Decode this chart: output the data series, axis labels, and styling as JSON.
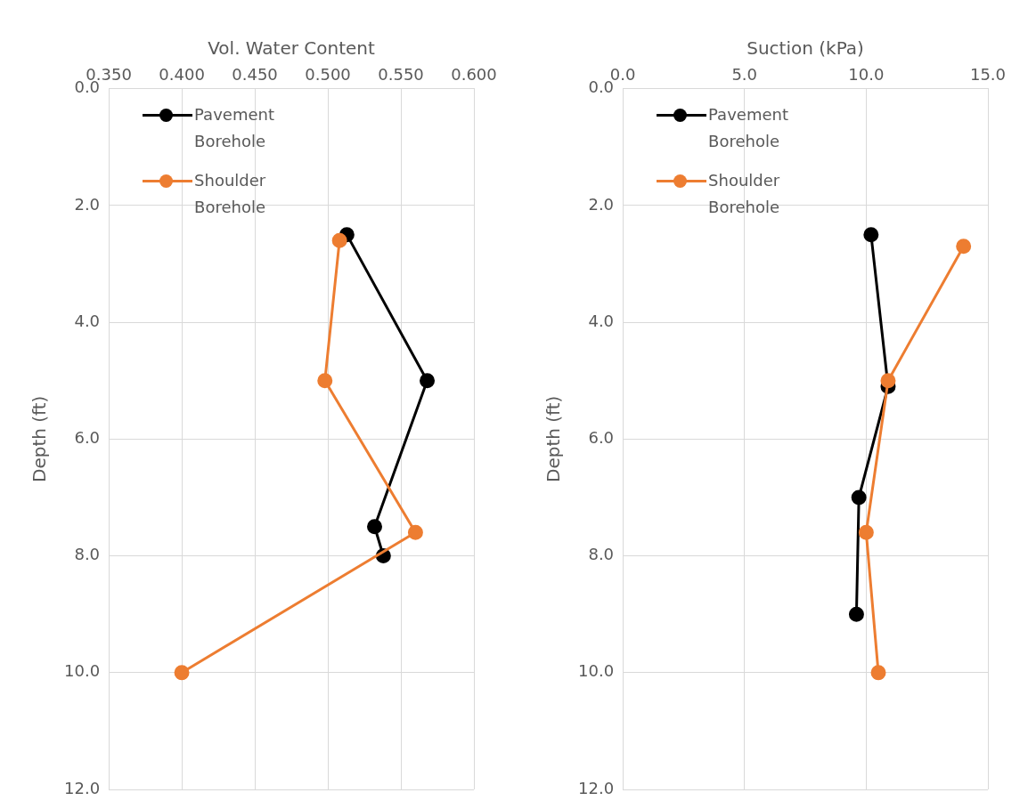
{
  "chart_data": [
    {
      "type": "line",
      "xlabel": "Vol. Water Content",
      "ylabel": "Depth (ft)",
      "xlim": [
        0.35,
        0.6
      ],
      "xticks": [
        {
          "value": 0.35,
          "label": "0.350"
        },
        {
          "value": 0.4,
          "label": "0.400"
        },
        {
          "value": 0.45,
          "label": "0.450"
        },
        {
          "value": 0.5,
          "label": "0.500"
        },
        {
          "value": 0.55,
          "label": "0.550"
        },
        {
          "value": 0.6,
          "label": "0.600"
        }
      ],
      "ylim": [
        12,
        0
      ],
      "yticks": [
        {
          "value": 0,
          "label": "0.0"
        },
        {
          "value": 2,
          "label": "2.0"
        },
        {
          "value": 4,
          "label": "4.0"
        },
        {
          "value": 6,
          "label": "6.0"
        },
        {
          "value": 8,
          "label": "8.0"
        },
        {
          "value": 10,
          "label": "10.0"
        },
        {
          "value": 12,
          "label": "12.0"
        }
      ],
      "grid": true,
      "legend": "top left",
      "marker": "circle",
      "line_style": "solid",
      "series": [
        {
          "name": "Pavement Borehole",
          "color": "#000000",
          "x": [
            0.513,
            0.568,
            0.532,
            0.538
          ],
          "values": [
            2.5,
            5.0,
            7.5,
            8.0
          ]
        },
        {
          "name": "Shoulder Borehole",
          "color": "#ed7d31",
          "x": [
            0.508,
            0.498,
            0.56,
            0.4
          ],
          "values": [
            2.6,
            5.0,
            7.6,
            10.0
          ]
        }
      ]
    },
    {
      "type": "line",
      "xlabel": "Suction (kPa)",
      "ylabel": "Depth (ft)",
      "xlim": [
        0,
        15
      ],
      "xticks": [
        {
          "value": 0,
          "label": "0.0"
        },
        {
          "value": 5,
          "label": "5.0"
        },
        {
          "value": 10,
          "label": "10.0"
        },
        {
          "value": 15,
          "label": "15.0"
        }
      ],
      "ylim": [
        12,
        0
      ],
      "yticks": [
        {
          "value": 0,
          "label": "0.0"
        },
        {
          "value": 2,
          "label": "2.0"
        },
        {
          "value": 4,
          "label": "4.0"
        },
        {
          "value": 6,
          "label": "6.0"
        },
        {
          "value": 8,
          "label": "8.0"
        },
        {
          "value": 10,
          "label": "10.0"
        },
        {
          "value": 12,
          "label": "12.0"
        }
      ],
      "grid": true,
      "legend": "top left",
      "marker": "circle",
      "line_style": "solid",
      "series": [
        {
          "name": "Pavement Borehole",
          "color": "#000000",
          "x": [
            10.2,
            10.9,
            9.7,
            9.6
          ],
          "values": [
            2.5,
            5.1,
            7.0,
            9.0
          ]
        },
        {
          "name": "Shoulder Borehole",
          "color": "#ed7d31",
          "x": [
            14.0,
            10.9,
            10.0,
            10.5
          ],
          "values": [
            2.7,
            5.0,
            7.6,
            10.0
          ]
        }
      ]
    }
  ]
}
